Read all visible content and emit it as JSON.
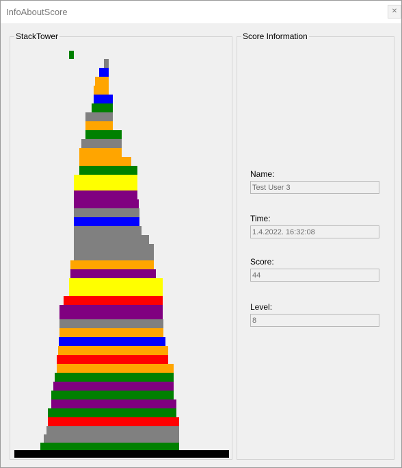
{
  "window": {
    "title": "InfoAboutScore",
    "close_glyph": "✕"
  },
  "tower": {
    "title": "StackTower"
  },
  "info": {
    "title": "Score Information",
    "fields": [
      {
        "label": "Name:",
        "value": "Test User 3"
      },
      {
        "label": "Time:",
        "value": "1.4.2022. 16:32:08"
      },
      {
        "label": "Score:",
        "value": "44"
      },
      {
        "label": "Level:",
        "value": "8"
      }
    ]
  },
  "colors": {
    "green": "#008000",
    "gray": "#808080",
    "blue": "#0000ff",
    "orange": "#ffa500",
    "yellow": "#ffff00",
    "purple": "#800080",
    "red": "#ff0000",
    "black": "#000000"
  }
}
